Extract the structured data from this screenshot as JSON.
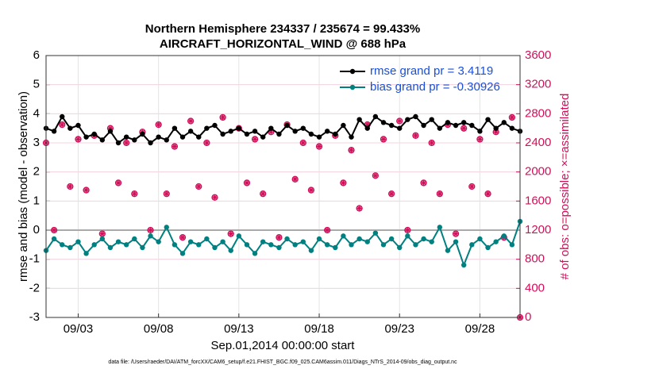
{
  "chart_data": {
    "type": "line",
    "title": "Northern Hemisphere 234337 / 235674 = 99.433%",
    "subtitle": "AIRCRAFT_HORIZONTAL_WIND @ 688 hPa",
    "xlabel": "Sep.01,2014 00:00:00 start",
    "ylabel": "rmse and bias (model - observation)",
    "y2label": "# of obs: o=possible; ×=assimilated",
    "footnote": "data file: /Users/raeder/DAI/ATM_forcXX/CAM6_setup/f.e21.FHIST_BGC.f09_025.CAM6assim.011/Diags_NTrS_2014-09/obs_diag_output.nc",
    "legend": "upper right",
    "grid": true,
    "xlim": [
      0,
      29.5
    ],
    "xticks": [
      {
        "value": 2,
        "label": "09/03"
      },
      {
        "value": 7,
        "label": "09/08"
      },
      {
        "value": 12,
        "label": "09/13"
      },
      {
        "value": 17,
        "label": "09/18"
      },
      {
        "value": 22,
        "label": "09/23"
      },
      {
        "value": 27,
        "label": "09/28"
      }
    ],
    "ylim": [
      -3,
      6
    ],
    "yticks": [
      -3,
      -2,
      -1,
      0,
      1,
      2,
      3,
      4,
      5,
      6
    ],
    "y2lim": [
      0,
      3600
    ],
    "y2ticks": [
      0,
      400,
      800,
      1200,
      1600,
      2000,
      2400,
      2800,
      3200,
      3600
    ],
    "x": [
      0,
      0.5,
      1,
      1.5,
      2,
      2.5,
      3,
      3.5,
      4,
      4.5,
      5,
      5.5,
      6,
      6.5,
      7,
      7.5,
      8,
      8.5,
      9,
      9.5,
      10,
      10.5,
      11,
      11.5,
      12,
      12.5,
      13,
      13.5,
      14,
      14.5,
      15,
      15.5,
      16,
      16.5,
      17,
      17.5,
      18,
      18.5,
      19,
      19.5,
      20,
      20.5,
      21,
      21.5,
      22,
      22.5,
      23,
      23.5,
      24,
      24.5,
      25,
      25.5,
      26,
      26.5,
      27,
      27.5,
      28,
      28.5,
      29,
      29.5
    ],
    "series": [
      {
        "name": "rmse grand pr = 3.4119",
        "color": "#000000",
        "values": [
          3.5,
          3.4,
          3.9,
          3.5,
          3.6,
          3.2,
          3.3,
          3.1,
          3.4,
          3.0,
          3.2,
          3.1,
          3.3,
          3.0,
          3.2,
          3.1,
          3.5,
          3.2,
          3.4,
          3.2,
          3.5,
          3.6,
          3.3,
          3.4,
          3.5,
          3.3,
          3.4,
          3.2,
          3.5,
          3.3,
          3.6,
          3.4,
          3.5,
          3.3,
          3.2,
          3.4,
          3.3,
          3.6,
          3.2,
          3.8,
          3.5,
          3.9,
          3.7,
          3.6,
          3.5,
          3.8,
          3.9,
          3.6,
          3.8,
          3.5,
          3.7,
          3.6,
          3.7,
          3.6,
          3.4,
          3.8,
          3.5,
          3.7,
          3.5,
          3.4
        ]
      },
      {
        "name": "bias grand pr = -0.30926",
        "color": "#008080",
        "values": [
          -0.7,
          -0.3,
          -0.5,
          -0.6,
          -0.4,
          -0.8,
          -0.5,
          -0.3,
          -0.6,
          -0.4,
          -0.5,
          -0.3,
          -0.6,
          -0.2,
          -0.4,
          0.1,
          -0.5,
          -0.8,
          -0.4,
          -0.5,
          -0.3,
          -0.6,
          -0.4,
          -0.7,
          -0.2,
          -0.5,
          -0.8,
          -0.4,
          -0.5,
          -0.6,
          -0.3,
          -0.5,
          -0.4,
          -0.7,
          -0.3,
          -0.5,
          -0.6,
          -0.2,
          -0.5,
          -0.3,
          -0.4,
          -0.1,
          -0.5,
          -0.3,
          -0.6,
          -0.2,
          -0.5,
          -0.3,
          -0.4,
          0.1,
          -0.7,
          -0.4,
          -1.2,
          -0.5,
          -0.3,
          -0.6,
          -0.4,
          -0.2,
          -0.5,
          0.3
        ]
      }
    ],
    "obs_color": "#d0105a",
    "obs_possible": [
      2400,
      1200,
      2650,
      1800,
      2450,
      1750,
      2500,
      1150,
      2600,
      1850,
      2400,
      1700,
      2550,
      1200,
      2650,
      1700,
      2350,
      1100,
      2700,
      1800,
      2400,
      1650,
      2750,
      1150,
      2600,
      1850,
      2450,
      1700,
      2550,
      1100,
      2650,
      1900,
      2400,
      1750,
      2350,
      1200,
      2500,
      1850,
      2300,
      1500,
      2650,
      1950,
      2450,
      1700,
      2700,
      1200,
      2500,
      1850,
      2400,
      1700,
      2650,
      1150,
      2600,
      1800,
      2450,
      1700,
      2550,
      1100,
      2750,
      0
    ],
    "obs_assimilated": [
      2400,
      1200,
      2650,
      1800,
      2450,
      1750,
      2500,
      1150,
      2600,
      1850,
      2400,
      1700,
      2550,
      1200,
      2650,
      1700,
      2350,
      1100,
      2700,
      1800,
      2400,
      1650,
      2750,
      1150,
      2600,
      1850,
      2450,
      1700,
      2550,
      1100,
      2650,
      1900,
      2400,
      1750,
      2350,
      1200,
      2500,
      1850,
      2300,
      1500,
      2650,
      1950,
      2450,
      1700,
      2700,
      1200,
      2500,
      1850,
      2400,
      1700,
      2650,
      1150,
      2600,
      1800,
      2450,
      1700,
      2550,
      1100,
      2750,
      0
    ]
  }
}
